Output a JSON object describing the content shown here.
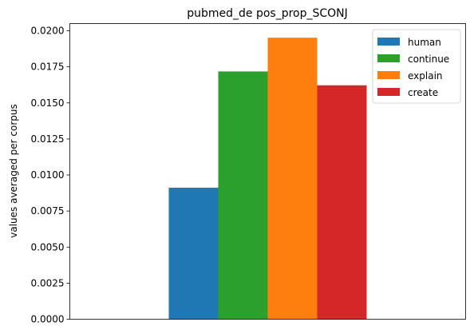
{
  "chart_data": {
    "type": "bar",
    "title": "pubmed_de pos_prop_SCONJ",
    "xlabel": "",
    "ylabel": "values averaged per corpus",
    "ylim": [
      0,
      0.0205
    ],
    "yticks": [
      "0.0000",
      "0.0025",
      "0.0050",
      "0.0075",
      "0.0100",
      "0.0125",
      "0.0150",
      "0.0175",
      "0.0200"
    ],
    "categories": [
      ""
    ],
    "series": [
      {
        "name": "human",
        "values": [
          0.00912
        ],
        "color": "#1f77b4"
      },
      {
        "name": "continue",
        "values": [
          0.01718
        ],
        "color": "#2ca02c"
      },
      {
        "name": "explain",
        "values": [
          0.01952
        ],
        "color": "#ff7f0e"
      },
      {
        "name": "create",
        "values": [
          0.01622
        ],
        "color": "#d62728"
      }
    ],
    "grid": false,
    "legend_position": "top-right"
  }
}
